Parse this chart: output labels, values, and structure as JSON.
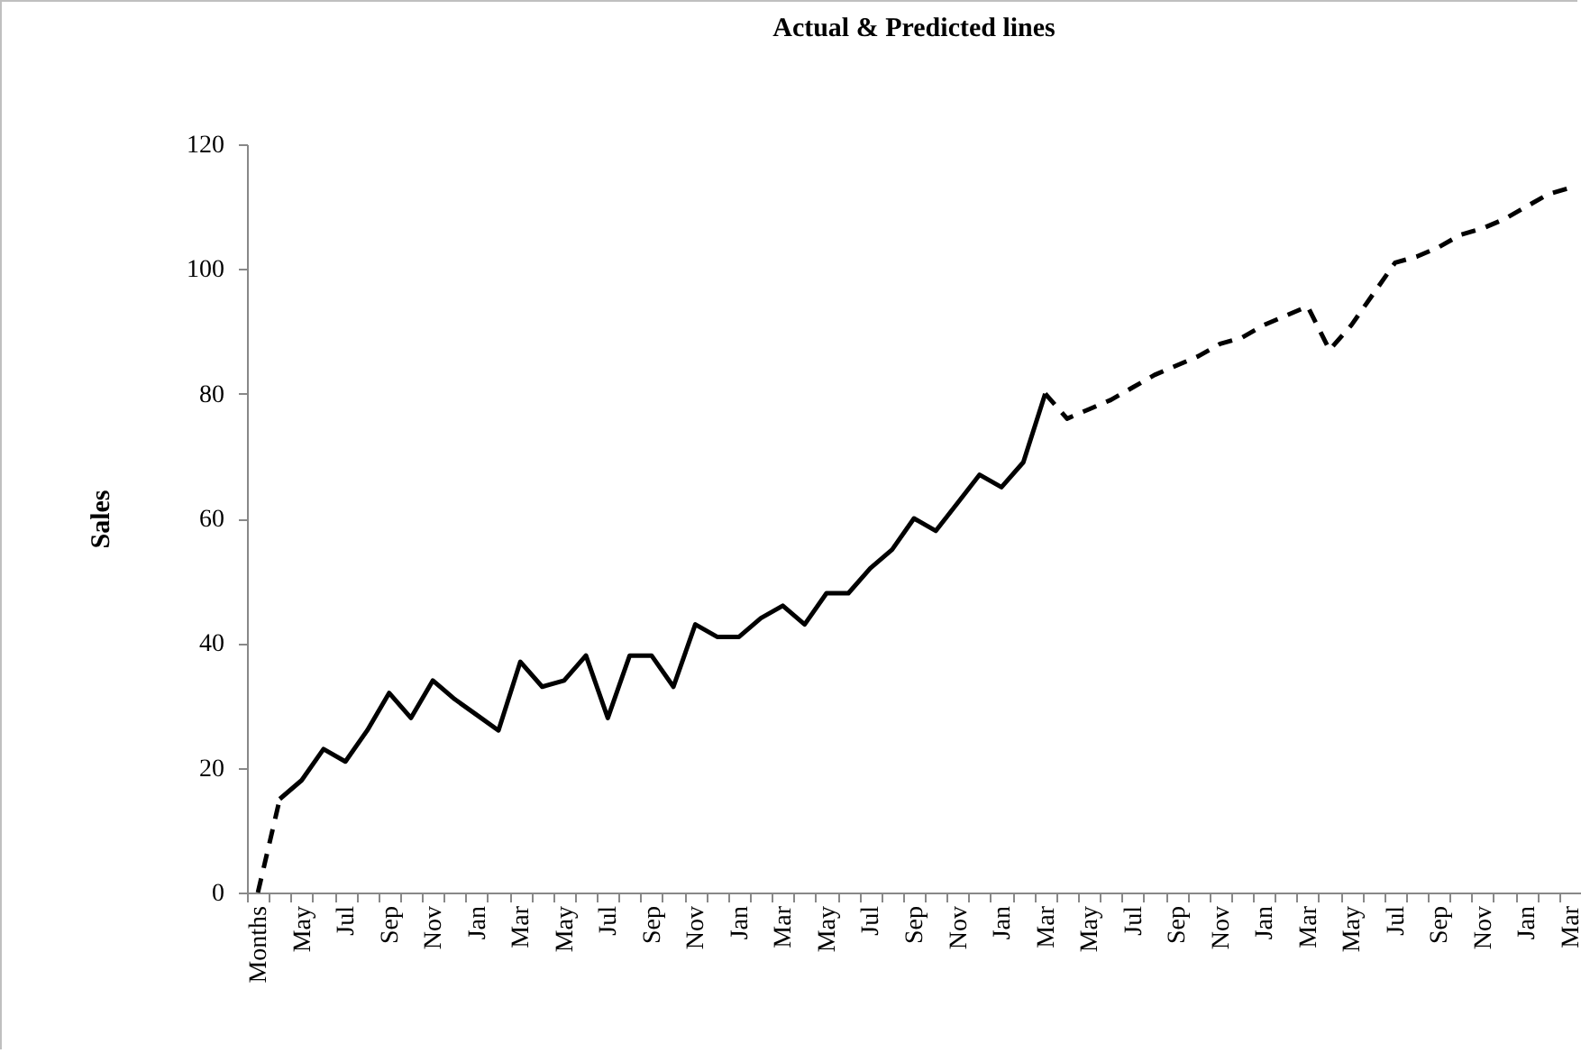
{
  "chart_data": {
    "type": "line",
    "title": "Actual & Predicted lines",
    "ylabel": "Sales",
    "categories": [
      "Months",
      null,
      "May",
      null,
      "Jul",
      null,
      "Sep",
      null,
      "Nov",
      null,
      "Jan",
      null,
      "Mar",
      null,
      "May",
      null,
      "Jul",
      null,
      "Sep",
      null,
      "Nov",
      null,
      "Jan",
      null,
      "Mar",
      null,
      "May",
      null,
      "Jul",
      null,
      "Sep",
      null,
      "Nov",
      null,
      "Jan",
      null,
      "Mar",
      null,
      "May",
      null,
      "Jul",
      null,
      "Sep",
      null,
      "Nov",
      null,
      "Jan",
      null,
      "Mar",
      null,
      "May",
      null,
      "Jul",
      null,
      "Sep",
      null,
      "Nov",
      null,
      "Jan",
      null,
      "Mar"
    ],
    "series": [
      {
        "color": "#000000",
        "line_style": "solid",
        "values": [
          null,
          15,
          18,
          23,
          21,
          26,
          32,
          28,
          34,
          31,
          28.5,
          26,
          37,
          33,
          34,
          38,
          28,
          38,
          38,
          33,
          43,
          41,
          41,
          44,
          46,
          43,
          48,
          48,
          52,
          55,
          60,
          58,
          62.5,
          67,
          65,
          69,
          80,
          null,
          null,
          null,
          null,
          null,
          null,
          null,
          null,
          null,
          null,
          null,
          null,
          null,
          null,
          null,
          null,
          null,
          null,
          null,
          null,
          null,
          null,
          null,
          null
        ]
      },
      {
        "color": "#000000",
        "line_style": "dashed",
        "values": [
          0,
          15,
          null,
          null,
          null,
          null,
          null,
          null,
          null,
          null,
          null,
          null,
          null,
          null,
          null,
          null,
          null,
          null,
          null,
          null,
          null,
          null,
          null,
          null,
          null,
          null,
          null,
          null,
          null,
          null,
          null,
          null,
          null,
          null,
          null,
          null,
          80,
          76,
          77.5,
          79,
          81,
          83,
          84.5,
          86,
          88,
          89,
          91,
          92.5,
          94,
          87,
          91,
          96,
          101,
          102,
          103.5,
          105.5,
          106.5,
          108,
          110,
          112,
          113
        ]
      }
    ],
    "ylim": [
      0,
      120
    ],
    "yticks": [
      0,
      20,
      40,
      60,
      80,
      100,
      120
    ],
    "grid": false,
    "marker": "none"
  }
}
